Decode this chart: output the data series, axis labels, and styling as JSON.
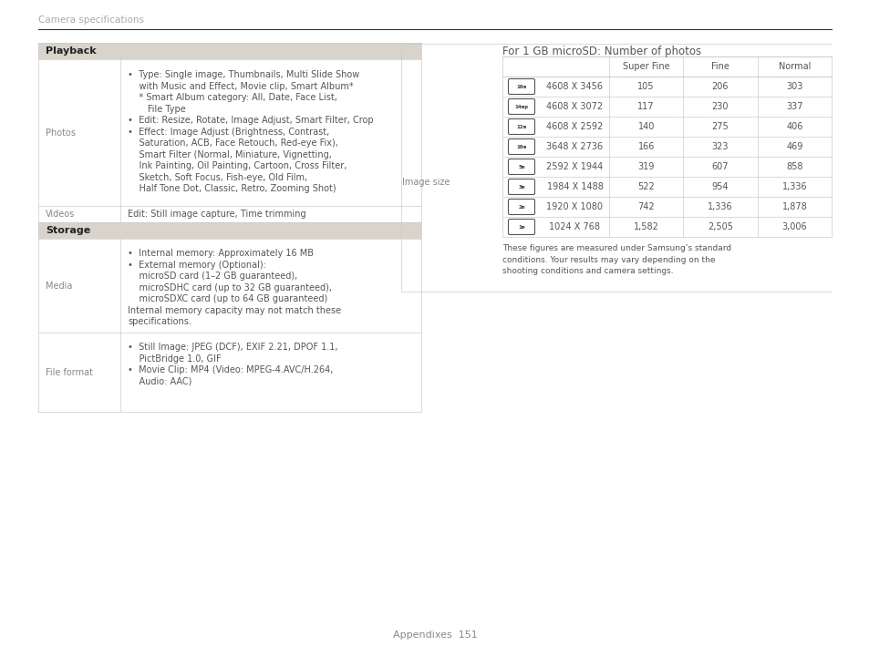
{
  "page_title": "Camera specifications",
  "footer_text": "Appendixes  151",
  "bg_color": "#ffffff",
  "header_line_color": "#333333",
  "section_bg_color": "#d8d4cc",
  "section_text_color": "#222222",
  "body_text_color": "#555555",
  "label_text_color": "#888888",
  "table_line_color": "#cccccc",
  "left_table": {
    "sections": [
      {
        "type": "header",
        "label": "Playback"
      },
      {
        "type": "row",
        "label": "Photos",
        "content": [
          "•  Type: Single image, Thumbnails, Multi Slide Show",
          "    with Music and Effect, Movie clip, Smart Album*",
          "    * Smart Album category: All, Date, Face List,",
          "       File Type",
          "•  Edit: Resize, Rotate, Image Adjust, Smart Filter, Crop",
          "•  Effect: Image Adjust (Brightness, Contrast,",
          "    Saturation, ACB, Face Retouch, Red-eye Fix),",
          "    Smart Filter (Normal, Miniature, Vignetting,",
          "    Ink Painting, Oil Painting, Cartoon, Cross Filter,",
          "    Sketch, Soft Focus, Fish-eye, Old Film,",
          "    Half Tone Dot, Classic, Retro, Zooming Shot)"
        ]
      },
      {
        "type": "row",
        "label": "Videos",
        "content": [
          "Edit: Still image capture, Time trimming"
        ]
      },
      {
        "type": "header",
        "label": "Storage"
      },
      {
        "type": "row",
        "label": "Media",
        "content": [
          "•  Internal memory: Approximately 16 MB",
          "•  External memory (Optional):",
          "    microSD card (1–2 GB guaranteed),",
          "    microSDHC card (up to 32 GB guaranteed),",
          "    microSDXC card (up to 64 GB guaranteed)",
          "Internal memory capacity may not match these",
          "specifications."
        ]
      },
      {
        "type": "row",
        "label": "File format",
        "content": [
          "•  Still Image: JPEG (DCF), EXIF 2.21, DPOF 1.1,",
          "    PictBridge 1.0, GIF",
          "•  Movie Clip: MP4 (Video: MPEG-4.AVC/H.264,",
          "    Audio: AAC)"
        ]
      }
    ]
  },
  "right_section": {
    "label": "Image size",
    "table_title": "For 1 GB microSD: Number of photos",
    "col_headers": [
      "",
      "Super Fine",
      "Fine",
      "Normal"
    ],
    "rows": [
      {
        "icon": "16m",
        "res": "4608 X 3456",
        "sf": "105",
        "f": "206",
        "n": "303"
      },
      {
        "icon": "14mp",
        "res": "4608 X 3072",
        "sf": "117",
        "f": "230",
        "n": "337"
      },
      {
        "icon": "12m",
        "res": "4608 X 2592",
        "sf": "140",
        "f": "275",
        "n": "406"
      },
      {
        "icon": "10m",
        "res": "3648 X 2736",
        "sf": "166",
        "f": "323",
        "n": "469"
      },
      {
        "icon": "5m",
        "res": "2592 X 1944",
        "sf": "319",
        "f": "607",
        "n": "858"
      },
      {
        "icon": "3m",
        "res": "1984 X 1488",
        "sf": "522",
        "f": "954",
        "n": "1,336"
      },
      {
        "icon": "2m",
        "res": "1920 X 1080",
        "sf": "742",
        "f": "1,336",
        "n": "1,878"
      },
      {
        "icon": "1m",
        "res": "1024 X 768",
        "sf": "1,582",
        "f": "2,505",
        "n": "3,006"
      }
    ],
    "footnote": "These figures are measured under Samsung’s standard\nconditions. Your results may vary depending on the\nshooting conditions and camera settings."
  }
}
